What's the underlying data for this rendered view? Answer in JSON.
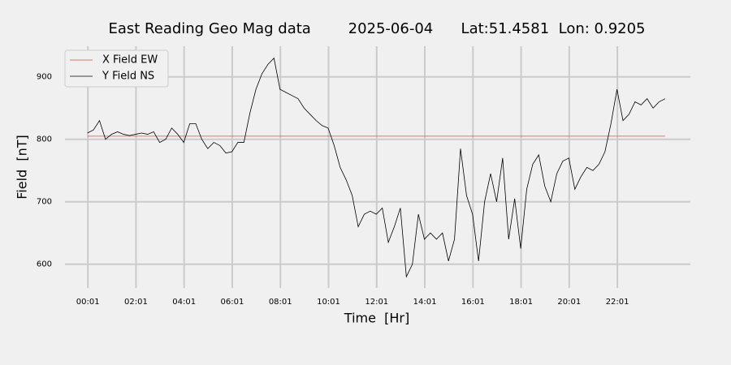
{
  "chart_data": {
    "type": "line",
    "title": "East Reading Geo Mag data        2025-06-04      Lat:51.4581  Lon: 0.9205",
    "xlabel": "Time  [Hr]",
    "ylabel": "Field  [nT]",
    "x": [
      0,
      15,
      30,
      45,
      60,
      75,
      90,
      105,
      120,
      135,
      150,
      165,
      180,
      195,
      210,
      225,
      240,
      255,
      270,
      285,
      300,
      315,
      330,
      345,
      360,
      375,
      390,
      405,
      420,
      435,
      450,
      465,
      480,
      495,
      510,
      525,
      540,
      555,
      570,
      585,
      600,
      615,
      630,
      645,
      660,
      675,
      690,
      705,
      720,
      735,
      750,
      765,
      780,
      795,
      810,
      825,
      840,
      855,
      870,
      885,
      900,
      915,
      930,
      945,
      960,
      975,
      990,
      1005,
      1020,
      1035,
      1050,
      1065,
      1080,
      1095,
      1110,
      1125,
      1140,
      1155,
      1170,
      1185,
      1200,
      1215,
      1230,
      1245,
      1260,
      1275,
      1290,
      1305,
      1320,
      1335,
      1350,
      1365,
      1380,
      1395,
      1410,
      1425,
      1440
    ],
    "series": [
      {
        "name": "X Field EW",
        "color": "#e8464a",
        "values": [
          805,
          805,
          805,
          805,
          805,
          805,
          805,
          805,
          805,
          805,
          805,
          805,
          805,
          805,
          805,
          805,
          805,
          805,
          805,
          805,
          805,
          805,
          805,
          805,
          805,
          805,
          805,
          805,
          805,
          805,
          805,
          805,
          805,
          805,
          805,
          805,
          805,
          805,
          805,
          805,
          805,
          805,
          805,
          805,
          805,
          805,
          805,
          805,
          805,
          805,
          805,
          805,
          805,
          805,
          805,
          805,
          805,
          805,
          805,
          805,
          805,
          805,
          805,
          805,
          805,
          805,
          805,
          805,
          805,
          805,
          805,
          805,
          805,
          805,
          805,
          805,
          805,
          805,
          805,
          805,
          805,
          805,
          805,
          805,
          805,
          805,
          805,
          805,
          805,
          805,
          805,
          805,
          805,
          805,
          805,
          805,
          805
        ]
      },
      {
        "name": "Y Field NS",
        "color": "#000000",
        "values": [
          810,
          815,
          830,
          800,
          808,
          812,
          808,
          806,
          808,
          810,
          808,
          812,
          795,
          800,
          818,
          808,
          795,
          825,
          825,
          800,
          785,
          795,
          790,
          778,
          780,
          795,
          795,
          842,
          880,
          905,
          920,
          930,
          880,
          875,
          870,
          865,
          850,
          840,
          830,
          822,
          818,
          790,
          755,
          735,
          710,
          660,
          680,
          685,
          680,
          690,
          635,
          660,
          690,
          580,
          600,
          680,
          640,
          650,
          640,
          650,
          605,
          640,
          785,
          710,
          680,
          605,
          700,
          745,
          700,
          770,
          640,
          705,
          625,
          720,
          760,
          775,
          725,
          700,
          745,
          765,
          770,
          720,
          740,
          755,
          750,
          760,
          780,
          825,
          880,
          830,
          840,
          860,
          855,
          865,
          850,
          860,
          865
        ]
      }
    ],
    "xlim": [
      -56,
      1503
    ],
    "xticks": [
      {
        "value": 1,
        "label": "00:01"
      },
      {
        "value": 121,
        "label": "02:01"
      },
      {
        "value": 241,
        "label": "04:01"
      },
      {
        "value": 361,
        "label": "06:01"
      },
      {
        "value": 481,
        "label": "08:01"
      },
      {
        "value": 601,
        "label": "10:01"
      },
      {
        "value": 721,
        "label": "12:01"
      },
      {
        "value": 841,
        "label": "14:01"
      },
      {
        "value": 961,
        "label": "16:01"
      },
      {
        "value": 1081,
        "label": "18:01"
      },
      {
        "value": 1201,
        "label": "20:01"
      },
      {
        "value": 1321,
        "label": "22:01"
      }
    ],
    "ylim": [
      562,
      949
    ],
    "yticks": [
      600,
      700,
      800,
      900
    ],
    "grid": true,
    "legend": "upper-left"
  }
}
